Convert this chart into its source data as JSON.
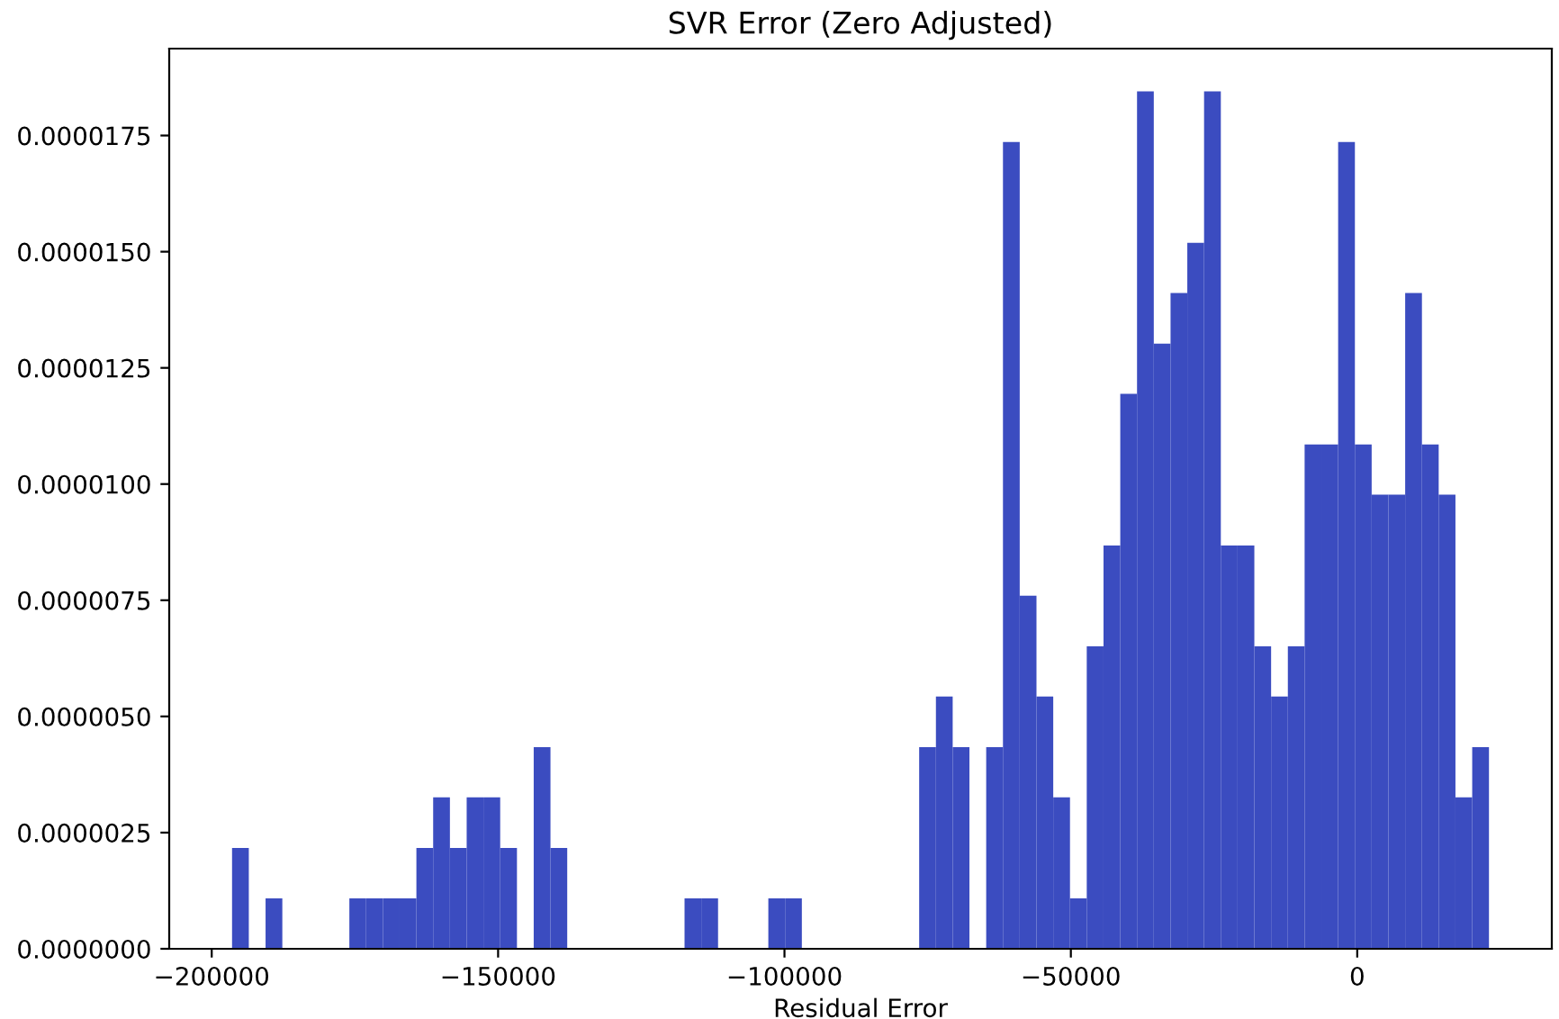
{
  "chart_data": {
    "type": "histogram",
    "title": "SVR Error (Zero Adjusted)",
    "xlabel": "Residual Error",
    "color": "#3b4cc0",
    "bins": [
      -196450,
      -193524,
      -190598,
      -187672,
      -184746,
      -181820,
      -178894,
      -175968,
      -173042,
      -170116,
      -167190,
      -164264,
      -161338,
      -158412,
      -155486,
      -152560,
      -149634,
      -146708,
      -143782,
      -140856,
      -137930,
      -135004,
      -132078,
      -129152,
      -126226,
      -123300,
      -120374,
      -117448,
      -114522,
      -111596,
      -108670,
      -105744,
      -102818,
      -99892,
      -96966,
      -94040,
      -91114,
      -88188,
      -85262,
      -82336,
      -79410,
      -76484,
      -73558,
      -70632,
      -67706,
      -64780,
      -61854,
      -58928,
      -56002,
      -53076,
      -50150,
      -47224,
      -44298,
      -41372,
      -38446,
      -35520,
      -32594,
      -29668,
      -26742,
      -23816,
      -20890,
      -17964,
      -15038,
      -12112,
      -9186,
      -6260,
      -3334,
      -408,
      2518,
      5444,
      8370,
      11296,
      14222,
      17148,
      20074,
      23000
    ],
    "values": [
      2.17e-06,
      0,
      1.085e-06,
      0,
      0,
      0,
      0,
      1.085e-06,
      1.085e-06,
      1.085e-06,
      1.085e-06,
      2.17e-06,
      3.26e-06,
      2.17e-06,
      3.26e-06,
      3.26e-06,
      2.17e-06,
      0,
      4.34e-06,
      2.17e-06,
      0,
      0,
      0,
      0,
      0,
      0,
      0,
      1.085e-06,
      1.085e-06,
      0,
      0,
      0,
      1.085e-06,
      1.085e-06,
      0,
      0,
      0,
      0,
      0,
      0,
      0,
      4.34e-06,
      5.43e-06,
      4.34e-06,
      0,
      4.34e-06,
      1.736e-05,
      7.6e-06,
      5.43e-06,
      3.26e-06,
      1.085e-06,
      6.51e-06,
      8.68e-06,
      1.194e-05,
      1.845e-05,
      1.302e-05,
      1.411e-05,
      1.519e-05,
      1.845e-05,
      8.68e-06,
      8.68e-06,
      6.51e-06,
      5.43e-06,
      6.51e-06,
      1.085e-05,
      1.085e-05,
      1.736e-05,
      1.085e-05,
      9.77e-06,
      9.77e-06,
      1.411e-05,
      1.085e-05,
      9.77e-06,
      3.26e-06,
      4.34e-06
    ],
    "xlim": [
      -207420,
      33970
    ],
    "ylim": [
      0,
      1.937e-05
    ],
    "xticks": [
      {
        "value": -200000,
        "label": "−200000"
      },
      {
        "value": -150000,
        "label": "−150000"
      },
      {
        "value": -100000,
        "label": "−100000"
      },
      {
        "value": -50000,
        "label": "−50000"
      },
      0
    ],
    "yticks": [
      {
        "value": 0,
        "label": "0.0000000"
      },
      {
        "value": 2.5e-06,
        "label": "0.0000025"
      },
      {
        "value": 5e-06,
        "label": "0.0000050"
      },
      {
        "value": 7.5e-06,
        "label": "0.0000075"
      },
      {
        "value": 1e-05,
        "label": "0.0000100"
      },
      {
        "value": 1.25e-05,
        "label": "0.0000125"
      },
      {
        "value": 1.5e-05,
        "label": "0.0000150"
      },
      {
        "value": 1.75e-05,
        "label": "0.0000175"
      }
    ]
  }
}
